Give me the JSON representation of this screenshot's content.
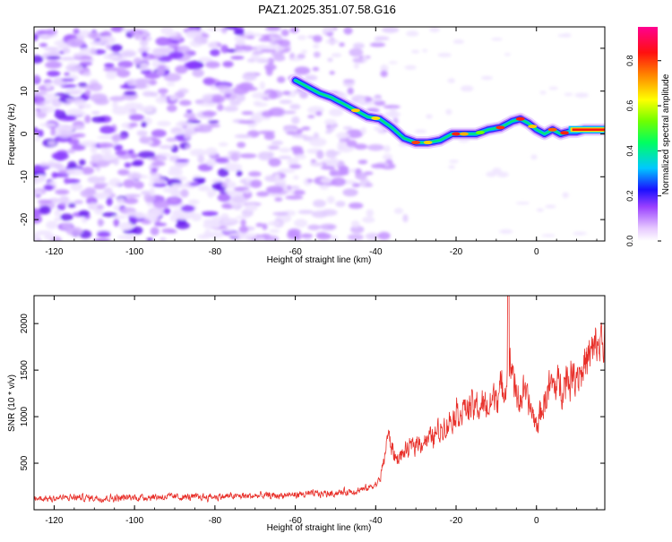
{
  "title": "PAZ1.2025.351.07.58.G16",
  "chart_data": [
    {
      "type": "heatmap",
      "xlabel": "Height of straight line (km)",
      "ylabel": "Frequency (Hz)",
      "xlim": [
        -125,
        17
      ],
      "ylim": [
        -25,
        25
      ],
      "xticks": [
        "-120",
        "-100",
        "-80",
        "-60",
        "-40",
        "-20",
        "0"
      ],
      "yticks": [
        "-20",
        "-10",
        "0",
        "10",
        "20"
      ],
      "colorbar": {
        "label": "Normalized spectral amplitude",
        "range": [
          0.0,
          0.95
        ],
        "ticks": [
          "0.0",
          "0.2",
          "0.4",
          "0.6",
          "0.8"
        ]
      },
      "ridge": {
        "x": [
          -60,
          -57,
          -54,
          -51,
          -48,
          -45,
          -42,
          -39,
          -36,
          -33,
          -30,
          -27,
          -24,
          -21,
          -18,
          -15,
          -12,
          -9,
          -6,
          -4,
          -2,
          0,
          2,
          4,
          6,
          8,
          10,
          12,
          14,
          17
        ],
        "y": [
          12.5,
          11,
          9.5,
          8.5,
          7,
          5.5,
          4,
          3.5,
          1.5,
          -1,
          -2,
          -2,
          -1.5,
          0,
          0,
          0,
          1,
          1.5,
          3,
          3.5,
          2.5,
          1,
          0,
          1,
          0,
          0.5,
          0.5,
          1,
          1,
          1
        ]
      },
      "noise_region_x": [
        -125,
        -40
      ]
    },
    {
      "type": "line",
      "xlabel": "Height of straight line (km)",
      "ylabel": "SNR (10 * v/v)",
      "xlim": [
        -125,
        17
      ],
      "ylim": [
        0,
        2300
      ],
      "xticks": [
        "-120",
        "-100",
        "-80",
        "-60",
        "-40",
        "-20",
        "0"
      ],
      "yticks": [
        "500",
        "1000",
        "1500",
        "2000"
      ],
      "color": "#e8302a",
      "series": [
        {
          "x": [
            -125,
            -115,
            -105,
            -95,
            -85,
            -75,
            -65,
            -60,
            -55,
            -50,
            -45,
            -42,
            -40,
            -39,
            -38,
            -37,
            -35,
            -33,
            -30,
            -27,
            -25,
            -22,
            -20,
            -18,
            -15,
            -12,
            -10,
            -8,
            -7,
            -6,
            -5,
            -3,
            0,
            3,
            6,
            9,
            12,
            15,
            17
          ],
          "y": [
            120,
            130,
            125,
            140,
            135,
            145,
            150,
            160,
            170,
            180,
            200,
            230,
            270,
            320,
            520,
            800,
            550,
            600,
            720,
            750,
            820,
            930,
            1050,
            1080,
            1110,
            1100,
            1250,
            1300,
            1450,
            1550,
            1180,
            1250,
            900,
            1300,
            1350,
            1450,
            1550,
            1750,
            1850
          ]
        }
      ]
    }
  ]
}
